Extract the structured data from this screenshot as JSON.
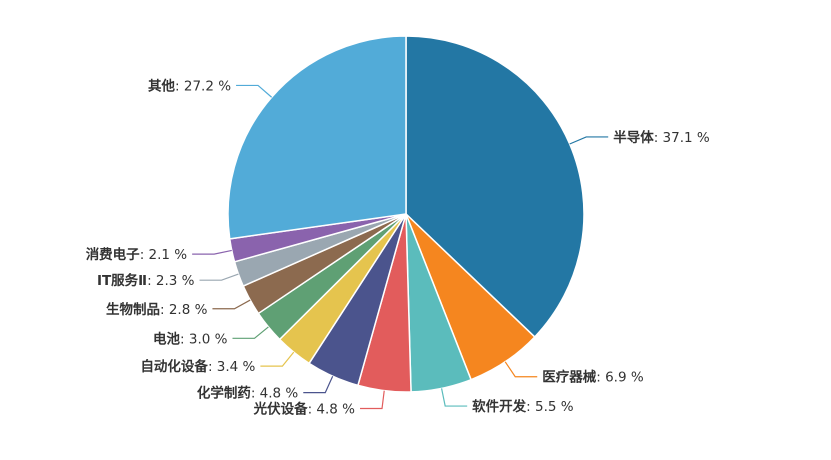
{
  "chart_data": {
    "type": "pie",
    "unit_suffix": " %",
    "categories": [
      "半导体",
      "医疗器械",
      "软件开发",
      "光伏设备",
      "化学制药",
      "自动化设备",
      "电池",
      "生物制品",
      "IT服务Ⅱ",
      "消费电子",
      "其他"
    ],
    "values": [
      37.1,
      6.9,
      5.5,
      4.8,
      4.8,
      3.4,
      3.0,
      2.8,
      2.3,
      2.1,
      27.2
    ],
    "colors": [
      "#2377a4",
      "#f5861f",
      "#5bbcbc",
      "#e25c5c",
      "#4b548d",
      "#e5c44e",
      "#5fa074",
      "#8c6a4f",
      "#9aa7b1",
      "#8a63ad",
      "#52abd8"
    ],
    "start_angle": "12 o'clock",
    "direction": "clockwise",
    "legend": "none"
  }
}
